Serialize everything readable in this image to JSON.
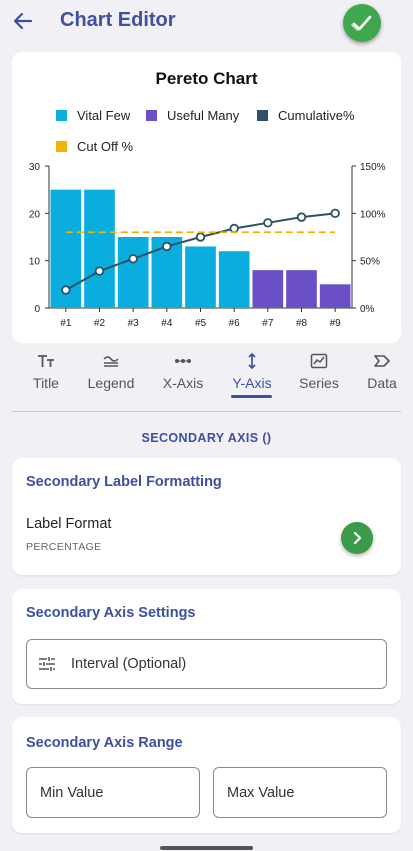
{
  "app": {
    "title": "Chart Editor",
    "icons": {
      "back": "arrow-left-icon",
      "done": "check-icon"
    }
  },
  "chart_data": {
    "type": "bar",
    "title": "Pereto Chart",
    "categories": [
      "#1",
      "#2",
      "#3",
      "#4",
      "#5",
      "#6",
      "#7",
      "#8",
      "#9"
    ],
    "series": [
      {
        "name": "Vital Few",
        "color": "#0aaede",
        "values": [
          25,
          25,
          15,
          15,
          13,
          12,
          null,
          null,
          null
        ]
      },
      {
        "name": "Useful Many",
        "color": "#6a4fc6",
        "values": [
          null,
          null,
          null,
          null,
          null,
          null,
          8,
          8,
          5
        ]
      },
      {
        "name": "Cumulative%",
        "color": "#2d5166",
        "type": "line",
        "axis": "right",
        "values": [
          19,
          39,
          52,
          65,
          75,
          84,
          90,
          96,
          100
        ]
      },
      {
        "name": "Cut Off %",
        "color": "#f2b200",
        "type": "line",
        "style": "dashed",
        "axis": "right",
        "values": [
          80,
          80,
          80,
          80,
          80,
          80,
          80,
          80,
          80
        ]
      }
    ],
    "ylim": [
      0,
      30
    ],
    "yticks": [
      "0",
      "10",
      "20",
      "30"
    ],
    "y2lim": [
      0,
      150
    ],
    "y2ticks": [
      "0%",
      "50%",
      "100%",
      "150%"
    ],
    "grid": false,
    "legend": "top"
  },
  "tabs": [
    {
      "label": "Title",
      "icon": "text-size-icon"
    },
    {
      "label": "Legend",
      "icon": "legend-icon"
    },
    {
      "label": "X-Axis",
      "icon": "x-axis-dots-icon"
    },
    {
      "label": "Y-Axis",
      "icon": "vertical-arrows-icon",
      "active": true
    },
    {
      "label": "Series",
      "icon": "line-chart-icon"
    },
    {
      "label": "Data",
      "icon": "label-tag-icon"
    }
  ],
  "section_title": "SECONDARY AXIS ()",
  "label_formatting": {
    "title": "Secondary Label Formatting",
    "label": "Label Format",
    "value": "PERCENTAGE",
    "icon": "chevron-right-icon"
  },
  "axis_settings": {
    "title": "Secondary Axis Settings",
    "interval_placeholder": "Interval (Optional)",
    "icon": "tune-sliders-icon"
  },
  "axis_range": {
    "title": "Secondary Axis Range",
    "min_placeholder": "Min Value",
    "max_placeholder": "Max Value"
  },
  "colors": {
    "accent": "#3e4fa2",
    "confirm": "#3fa74d",
    "bar_vital": "#0aaede",
    "bar_useful": "#6a4fc6",
    "cumulative": "#2d5166",
    "cutoff": "#f2b200"
  }
}
